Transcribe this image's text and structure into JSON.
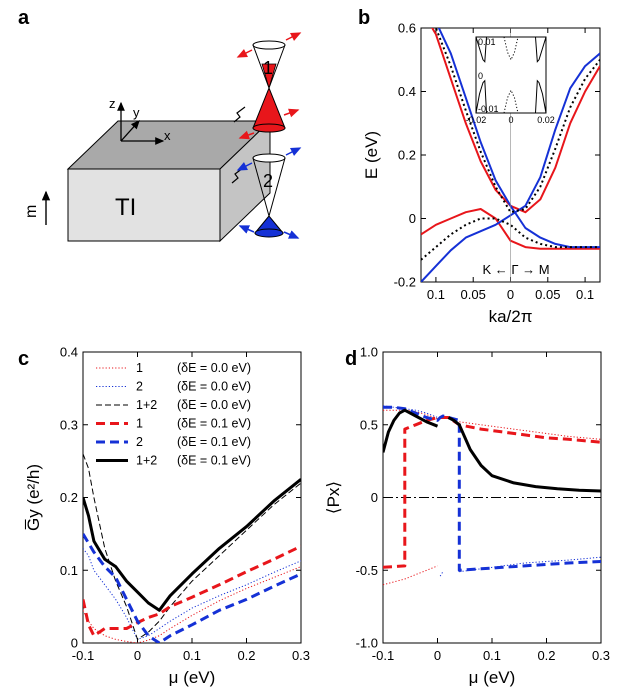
{
  "panels": {
    "a": "a",
    "b": "b",
    "c": "c",
    "d": "d"
  },
  "schematic": {
    "block_label": "TI",
    "magnetization": "m",
    "axes": {
      "z": "z",
      "y": "y",
      "x": "x"
    },
    "cone1": "1",
    "cone2": "2"
  },
  "colors": {
    "red": "#e8161b",
    "blue": "#1531d6",
    "black": "#000000",
    "block_top": "#a9a9a9",
    "block_front": "#e2e2e2"
  },
  "chart_data": [
    {
      "id": "b",
      "type": "line",
      "xlabel": "ka/2π",
      "ylabel": "E (eV)",
      "xlim": [
        -0.12,
        0.12
      ],
      "ylim": [
        -0.2,
        0.6
      ],
      "x_ticks": [
        -0.1,
        -0.05,
        0,
        0.05,
        0.1
      ],
      "x_tick_labels": [
        "0.1",
        "0.05",
        "0",
        "0.05",
        "0.1"
      ],
      "y_ticks": [
        -0.2,
        0,
        0.2,
        0.4,
        0.6
      ],
      "y_tick_labels": [
        "-0.2",
        "0",
        "0.2",
        "0.4",
        "0.6"
      ],
      "annotation": "K ← Γ → M",
      "series": [
        {
          "color": "red",
          "style": "solid",
          "x": [
            -0.12,
            -0.1,
            -0.08,
            -0.06,
            -0.04,
            -0.02,
            0,
            0.02,
            0.04,
            0.06,
            0.08,
            0.1,
            0.12
          ],
          "y": [
            -0.05,
            -0.02,
            0.0,
            0.02,
            0.03,
            0.0,
            -0.07,
            -0.09,
            -0.095,
            -0.095,
            -0.095,
            -0.095,
            -0.095
          ]
        },
        {
          "color": "red",
          "style": "solid",
          "x": [
            -0.12,
            -0.1,
            -0.08,
            -0.06,
            -0.04,
            -0.02,
            0,
            0.02,
            0.04,
            0.06,
            0.08,
            0.1,
            0.12
          ],
          "y": [
            0.66,
            0.58,
            0.44,
            0.3,
            0.18,
            0.09,
            0.04,
            0.02,
            0.06,
            0.16,
            0.3,
            0.4,
            0.48
          ]
        },
        {
          "color": "blue",
          "style": "solid",
          "x": [
            -0.12,
            -0.1,
            -0.08,
            -0.06,
            -0.04,
            -0.02,
            0,
            0.02,
            0.04,
            0.06,
            0.08,
            0.1,
            0.12
          ],
          "y": [
            -0.2,
            -0.15,
            -0.1,
            -0.06,
            -0.04,
            -0.02,
            0.01,
            0.04,
            0.13,
            0.28,
            0.41,
            0.48,
            0.52
          ]
        },
        {
          "color": "blue",
          "style": "solid",
          "x": [
            -0.12,
            -0.1,
            -0.08,
            -0.06,
            -0.04,
            -0.02,
            0,
            0.02,
            0.04,
            0.06,
            0.08,
            0.1,
            0.12
          ],
          "y": [
            0.68,
            0.62,
            0.52,
            0.38,
            0.24,
            0.12,
            0.04,
            -0.03,
            -0.06,
            -0.08,
            -0.09,
            -0.09,
            -0.09
          ]
        },
        {
          "color": "black",
          "style": "dotted",
          "x": [
            -0.12,
            -0.1,
            -0.08,
            -0.06,
            -0.04,
            -0.02,
            0,
            0.02,
            0.04,
            0.06,
            0.08,
            0.1,
            0.12
          ],
          "y": [
            0.66,
            0.6,
            0.48,
            0.34,
            0.21,
            0.1,
            0.02,
            0.03,
            0.1,
            0.22,
            0.35,
            0.44,
            0.5
          ]
        },
        {
          "color": "black",
          "style": "dotted",
          "x": [
            -0.12,
            -0.1,
            -0.08,
            -0.06,
            -0.04,
            -0.02,
            0,
            0.02,
            0.04,
            0.06,
            0.08,
            0.1,
            0.12
          ],
          "y": [
            -0.13,
            -0.09,
            -0.05,
            -0.02,
            0.0,
            0.0,
            -0.02,
            -0.06,
            -0.08,
            -0.09,
            -0.09,
            -0.09,
            -0.09
          ]
        }
      ],
      "inset": {
        "xlim": [
          -0.02,
          0.02
        ],
        "ylim": [
          -0.01,
          0.01
        ],
        "x_tick_labels": [
          "-0.02",
          "0",
          "0.02"
        ],
        "y_tick_labels": [
          "-0.01",
          "0",
          "0.01"
        ],
        "series": [
          {
            "color": "black",
            "style": "solid",
            "x": [
              -0.02,
              -0.018,
              -0.016,
              -0.015,
              -0.014
            ],
            "y": [
              0.01,
              0.007,
              0.004,
              0.0035,
              0.01
            ]
          },
          {
            "color": "black",
            "style": "solid",
            "x": [
              0.014,
              0.015,
              0.016,
              0.018,
              0.02
            ],
            "y": [
              0.01,
              0.0035,
              0.004,
              0.007,
              0.01
            ]
          },
          {
            "color": "black",
            "style": "solid",
            "x": [
              -0.02,
              -0.018,
              -0.016,
              -0.015,
              -0.014
            ],
            "y": [
              -0.01,
              -0.005,
              -0.002,
              -0.0015,
              -0.01
            ]
          },
          {
            "color": "black",
            "style": "solid",
            "x": [
              0.014,
              0.015,
              0.016,
              0.018,
              0.02
            ],
            "y": [
              -0.01,
              -0.0015,
              -0.002,
              -0.005,
              -0.01
            ]
          },
          {
            "color": "black",
            "style": "dotted",
            "x": [
              -0.004,
              -0.002,
              0,
              0.002,
              0.004
            ],
            "y": [
              0.01,
              0.006,
              0.004,
              0.006,
              0.01
            ]
          },
          {
            "color": "black",
            "style": "dotted",
            "x": [
              -0.004,
              -0.002,
              0,
              0.002,
              0.004
            ],
            "y": [
              -0.01,
              -0.006,
              -0.004,
              -0.006,
              -0.01
            ]
          }
        ]
      }
    },
    {
      "id": "c",
      "type": "line",
      "xlabel": "μ (eV)",
      "ylabel": "G̅y (e²/h)",
      "xlim": [
        -0.1,
        0.3
      ],
      "ylim": [
        0,
        0.4
      ],
      "x_ticks": [
        -0.1,
        0,
        0.1,
        0.2,
        0.3
      ],
      "x_tick_labels": [
        "-0.1",
        "0",
        "0.1",
        "0.2",
        "0.3"
      ],
      "y_ticks": [
        0,
        0.1,
        0.2,
        0.3,
        0.4
      ],
      "y_tick_labels": [
        "0",
        "0.1",
        "0.2",
        "0.3",
        "0.4"
      ],
      "legend_position": "top-left",
      "series": [
        {
          "name": "1",
          "note": "(δE = 0.0 eV)",
          "color": "red",
          "style": "dotted",
          "width": 1,
          "x": [
            -0.1,
            -0.09,
            -0.08,
            -0.06,
            -0.04,
            -0.02,
            0,
            0.02,
            0.04,
            0.06,
            0.1,
            0.15,
            0.2,
            0.25,
            0.3
          ],
          "y": [
            0.045,
            0.03,
            0.02,
            0.01,
            0.005,
            0.002,
            0.0,
            0.004,
            0.01,
            0.02,
            0.038,
            0.058,
            0.075,
            0.09,
            0.105
          ]
        },
        {
          "name": "2",
          "note": "(δE = 0.0 eV)",
          "color": "blue",
          "style": "dotted",
          "width": 1,
          "x": [
            -0.1,
            -0.09,
            -0.08,
            -0.06,
            -0.04,
            -0.02,
            0,
            0.02,
            0.04,
            0.06,
            0.1,
            0.15,
            0.2,
            0.25,
            0.3
          ],
          "y": [
            0.13,
            0.12,
            0.1,
            0.08,
            0.06,
            0.035,
            0.005,
            0.01,
            0.02,
            0.03,
            0.048,
            0.065,
            0.08,
            0.097,
            0.113
          ]
        },
        {
          "name": "1+2",
          "note": "(δE = 0.0 eV)",
          "color": "black",
          "style": "dashed",
          "width": 1,
          "x": [
            -0.1,
            -0.09,
            -0.08,
            -0.06,
            -0.04,
            -0.02,
            0,
            0.02,
            0.04,
            0.06,
            0.1,
            0.15,
            0.2,
            0.25,
            0.3
          ],
          "y": [
            0.26,
            0.24,
            0.2,
            0.13,
            0.085,
            0.05,
            0.005,
            0.015,
            0.03,
            0.05,
            0.085,
            0.12,
            0.155,
            0.19,
            0.22
          ]
        },
        {
          "name": "1",
          "note": "(δE = 0.1 eV)",
          "color": "red",
          "style": "dashed",
          "width": 3,
          "x": [
            -0.1,
            -0.09,
            -0.08,
            -0.06,
            -0.04,
            -0.02,
            0,
            0.02,
            0.04,
            0.06,
            0.1,
            0.15,
            0.2,
            0.25,
            0.3
          ],
          "y": [
            0.06,
            0.025,
            0.01,
            0.02,
            0.02,
            0.02,
            0.028,
            0.035,
            0.04,
            0.05,
            0.063,
            0.08,
            0.098,
            0.115,
            0.133
          ]
        },
        {
          "name": "2",
          "note": "(δE = 0.1 eV)",
          "color": "blue",
          "style": "dashed",
          "width": 3,
          "x": [
            -0.1,
            -0.08,
            -0.06,
            -0.04,
            -0.02,
            0,
            0.02,
            0.04,
            0.06,
            0.1,
            0.15,
            0.2,
            0.25,
            0.3
          ],
          "y": [
            0.15,
            0.125,
            0.105,
            0.09,
            0.06,
            0.03,
            0.01,
            0.0,
            0.01,
            0.025,
            0.045,
            0.06,
            0.078,
            0.095
          ]
        },
        {
          "name": "1+2",
          "note": "(δE = 0.1 eV)",
          "color": "black",
          "style": "solid",
          "width": 3,
          "x": [
            -0.1,
            -0.09,
            -0.08,
            -0.06,
            -0.04,
            -0.02,
            0,
            0.02,
            0.04,
            0.06,
            0.1,
            0.15,
            0.2,
            0.25,
            0.3
          ],
          "y": [
            0.2,
            0.175,
            0.14,
            0.115,
            0.105,
            0.085,
            0.07,
            0.055,
            0.045,
            0.065,
            0.095,
            0.13,
            0.16,
            0.195,
            0.225
          ]
        }
      ]
    },
    {
      "id": "d",
      "type": "line",
      "xlabel": "μ (eV)",
      "ylabel": "⟨Px⟩",
      "xlim": [
        -0.1,
        0.3
      ],
      "ylim": [
        -1.0,
        1.0
      ],
      "x_ticks": [
        -0.1,
        0,
        0.1,
        0.2,
        0.3
      ],
      "x_tick_labels": [
        "-0.1",
        "0",
        "0.1",
        "0.2",
        "0.3"
      ],
      "y_ticks": [
        -1.0,
        -0.5,
        0,
        0.5,
        1.0
      ],
      "y_tick_labels": [
        "-1.0",
        "-0.5",
        "0",
        "0.5",
        "1.0"
      ],
      "zero_line": true,
      "series": [
        {
          "color": "red",
          "style": "dotted",
          "width": 1,
          "x": [
            -0.1,
            -0.08,
            -0.06,
            -0.04,
            -0.02,
            0
          ],
          "y": [
            -0.6,
            -0.58,
            -0.56,
            -0.53,
            -0.5,
            -0.47
          ]
        },
        {
          "color": "red",
          "style": "dotted",
          "width": 1,
          "x": [
            -0.1,
            -0.08,
            -0.06,
            -0.04,
            -0.02,
            0
          ],
          "y": [
            0.6,
            0.6,
            0.6,
            0.59,
            0.57,
            0.54
          ]
        },
        {
          "color": "red",
          "style": "dotted",
          "width": 1,
          "x": [
            0.04,
            0.08,
            0.12,
            0.16,
            0.2,
            0.24,
            0.3
          ],
          "y": [
            0.52,
            0.5,
            0.48,
            0.46,
            0.44,
            0.42,
            0.4
          ]
        },
        {
          "color": "blue",
          "style": "dotted",
          "width": 1,
          "x": [
            0.005,
            0.01
          ],
          "y": [
            -0.54,
            -0.51
          ]
        },
        {
          "color": "blue",
          "style": "dotted",
          "width": 1,
          "x": [
            0.04,
            0.08,
            0.12,
            0.16,
            0.2,
            0.24,
            0.3
          ],
          "y": [
            -0.51,
            -0.49,
            -0.47,
            -0.45,
            -0.44,
            -0.43,
            -0.41
          ]
        },
        {
          "color": "blue",
          "style": "dotted",
          "width": 1,
          "x": [
            -0.1,
            -0.08,
            -0.06,
            -0.04,
            -0.02,
            0
          ],
          "y": [
            0.63,
            0.62,
            0.61,
            0.6,
            0.58,
            0.55
          ]
        },
        {
          "color": "red",
          "style": "dashed",
          "width": 3,
          "x": [
            -0.1,
            -0.06,
            -0.06,
            -0.04,
            -0.02,
            0,
            0.02,
            0.04,
            0.08,
            0.12,
            0.16,
            0.2,
            0.24,
            0.3
          ],
          "y": [
            -0.48,
            -0.47,
            0.47,
            0.5,
            0.53,
            0.55,
            0.55,
            0.5,
            0.47,
            0.45,
            0.43,
            0.41,
            0.4,
            0.38
          ]
        },
        {
          "color": "blue",
          "style": "dashed",
          "width": 3,
          "x": [
            -0.1,
            -0.08,
            -0.06,
            -0.04,
            -0.02,
            0,
            0.005,
            0.01,
            0.02,
            0.03,
            0.04,
            0.04,
            0.08,
            0.12,
            0.16,
            0.2,
            0.24,
            0.3
          ],
          "y": [
            0.62,
            0.62,
            0.61,
            0.58,
            0.55,
            0.53,
            0.55,
            0.56,
            0.55,
            0.54,
            0.53,
            -0.5,
            -0.49,
            -0.48,
            -0.47,
            -0.46,
            -0.45,
            -0.44
          ]
        },
        {
          "color": "black",
          "style": "solid",
          "width": 3,
          "x": [
            -0.1,
            -0.09,
            -0.08,
            -0.07,
            -0.06,
            -0.04,
            -0.02,
            0
          ],
          "y": [
            0.31,
            0.45,
            0.53,
            0.58,
            0.6,
            0.56,
            0.52,
            0.49
          ]
        },
        {
          "color": "black",
          "style": "solid",
          "width": 3,
          "x": [
            0.02,
            0.03,
            0.04,
            0.06,
            0.08,
            0.1,
            0.14,
            0.18,
            0.22,
            0.26,
            0.3
          ],
          "y": [
            0.55,
            0.53,
            0.5,
            0.33,
            0.22,
            0.15,
            0.1,
            0.075,
            0.06,
            0.05,
            0.045
          ]
        }
      ]
    }
  ]
}
